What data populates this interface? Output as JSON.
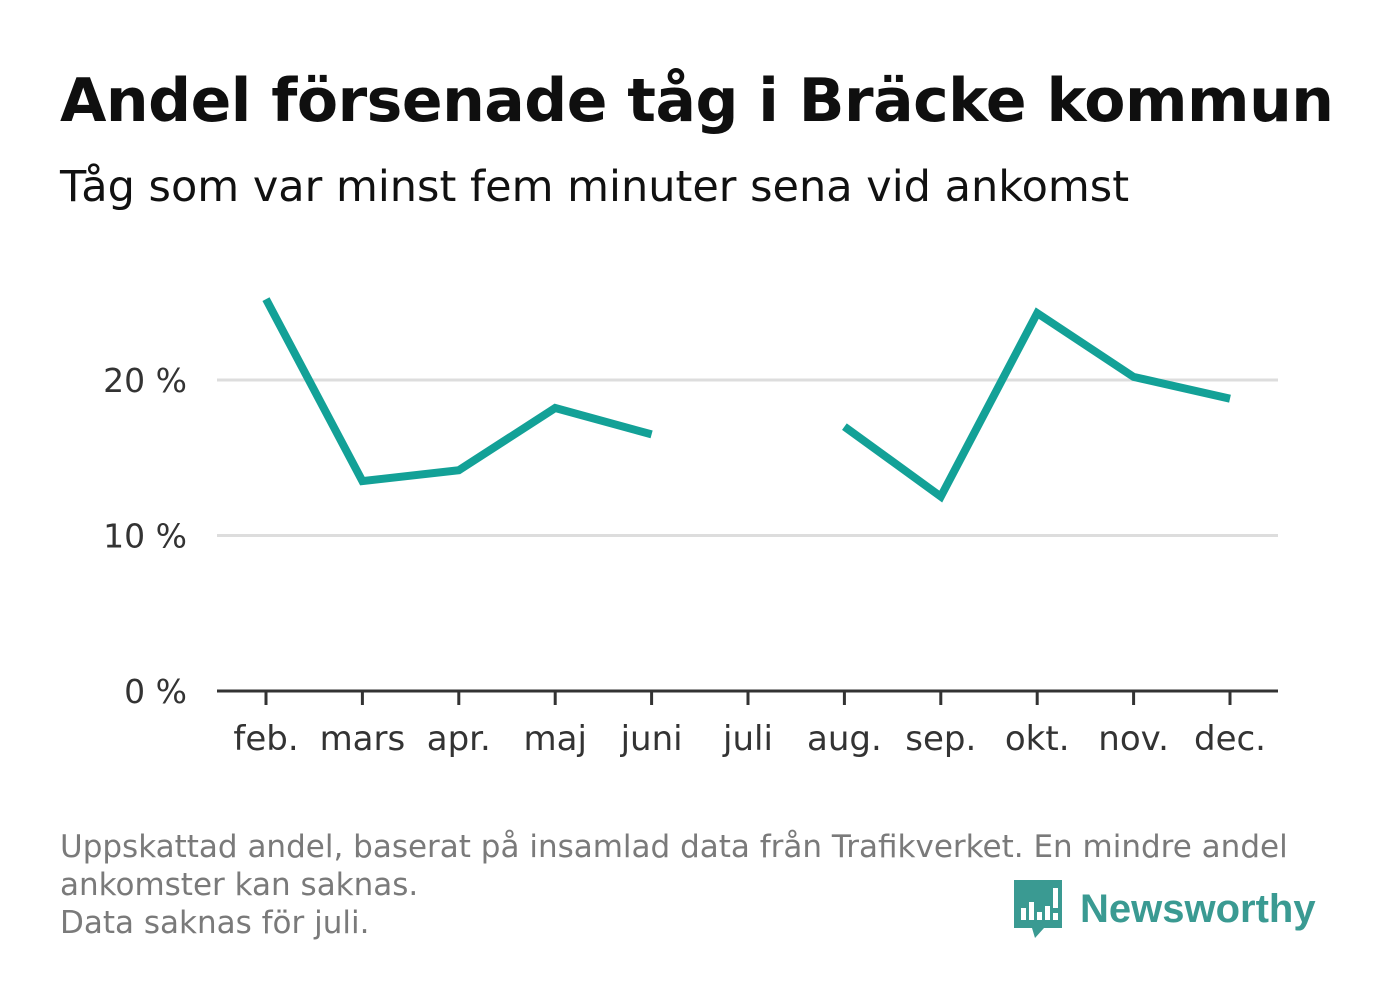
{
  "title": "Andel försenade tåg i Bräcke kommun",
  "subtitle": "Tåg som var minst fem minuter sena vid ankomst",
  "footnote": {
    "line1": "Uppskattad andel, baserat på insamlad data från Trafikverket. En mindre andel",
    "line2": "ankomster kan saknas.",
    "line3": "Data saknas för juli."
  },
  "brand": {
    "name": "Newsworthy",
    "color": "#3a9a92"
  },
  "colors": {
    "line": "#13a197",
    "grid": "#dddddd",
    "axis": "#333333",
    "tick_text": "#333333"
  },
  "chart_data": {
    "type": "line",
    "categories": [
      "feb.",
      "mars",
      "apr.",
      "maj",
      "juni",
      "juli",
      "aug.",
      "sep.",
      "okt.",
      "nov.",
      "dec."
    ],
    "series": [
      {
        "values": [
          25.2,
          13.5,
          14.2,
          18.2,
          16.5,
          null,
          17.0,
          12.5,
          24.3,
          20.2,
          18.8
        ]
      }
    ],
    "yticks": [
      {
        "value": 0,
        "label": "0 %"
      },
      {
        "value": 10,
        "label": "10 %"
      },
      {
        "value": 20,
        "label": "20 %"
      }
    ],
    "ylim": [
      0,
      27
    ],
    "grid": true,
    "xlabel": "",
    "ylabel": ""
  }
}
